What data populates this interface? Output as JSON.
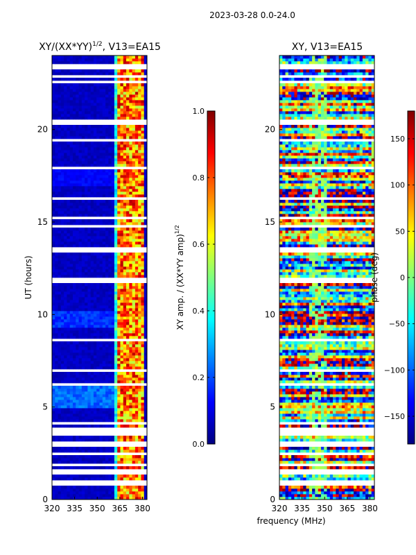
{
  "suptitle": "2023-03-28 0.0-24.0",
  "chart_data": [
    {
      "type": "heatmap",
      "title": "XY/(XX*YY)",
      "title_exponent": "1/2",
      "title_suffix": ", V13=EA15",
      "xlabel": "",
      "ylabel": "UT (hours)",
      "xlim": [
        320,
        383
      ],
      "ylim": [
        0,
        24
      ],
      "xticks": [
        320,
        335,
        350,
        365,
        380
      ],
      "yticks": [
        0,
        5,
        10,
        15,
        20
      ],
      "colorbar": {
        "label": "XY amp. / (XX*YY amp)",
        "label_exponent": "1/2",
        "range": [
          0.0,
          1.0
        ],
        "ticks": [
          "0.0",
          "0.2",
          "0.4",
          "0.6",
          "0.8",
          "1.0"
        ],
        "tick_values": [
          0.0,
          0.2,
          0.4,
          0.6,
          0.8,
          1.0
        ]
      }
    },
    {
      "type": "heatmap",
      "title": "XY, V13=EA15",
      "xlabel": "frequency (MHz)",
      "ylabel": "",
      "xlim": [
        320,
        383
      ],
      "ylim": [
        0,
        24
      ],
      "xticks": [
        320,
        335,
        350,
        365,
        380
      ],
      "yticks": [
        0,
        5,
        10,
        15,
        20
      ],
      "colorbar": {
        "label": "phase (deg)",
        "range": [
          -180,
          180
        ],
        "ticks": [
          "150",
          "100",
          "50",
          "0",
          "−50",
          "−100",
          "−150"
        ],
        "tick_values": [
          150,
          100,
          50,
          0,
          -50,
          -100,
          -150
        ]
      }
    }
  ],
  "flagged_ut_hours": [
    0.9,
    1.5,
    1.9,
    2.5,
    3.0,
    3.6,
    3.8,
    4.1,
    6.2,
    7.0,
    8.6,
    11.8,
    11.9,
    13.5,
    14.8,
    15.2,
    16.3,
    17.9,
    19.4,
    20.4,
    22.6,
    22.9,
    23.4,
    23.5
  ]
}
